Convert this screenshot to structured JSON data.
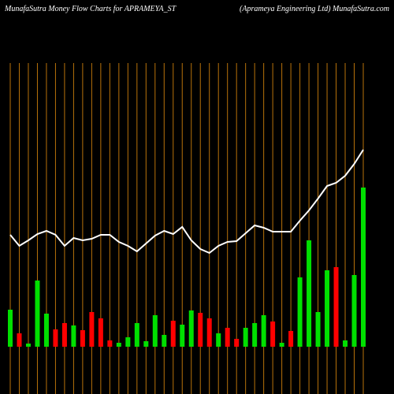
{
  "chart_data": {
    "type": "bar",
    "title": "MunafaSutra  Money Flow  Charts for APRAMEYA_ST",
    "subtitle": "(Aprameya  Engineering Ltd) MunafaSutra.com",
    "line": {
      "color": "#ffffff",
      "values": [
        142,
        128,
        135,
        143,
        147,
        142,
        128,
        138,
        135,
        137,
        142,
        142,
        133,
        128,
        121,
        131,
        141,
        147,
        143,
        152,
        135,
        124,
        119,
        128,
        133,
        134,
        144,
        154,
        151,
        146,
        146,
        146,
        160,
        173,
        188,
        204,
        208,
        217,
        232,
        250
      ]
    },
    "values": [
      47,
      17,
      4,
      84,
      42,
      22,
      30,
      27,
      21,
      44,
      36,
      8,
      5,
      12,
      30,
      7,
      40,
      15,
      33,
      28,
      46,
      43,
      36,
      17,
      24,
      10,
      24,
      30,
      40,
      32,
      5,
      20,
      88,
      135,
      44,
      97,
      101,
      8,
      91,
      202
    ],
    "colors": [
      "#00e000",
      "#ff0000",
      "#00e000",
      "#00e000",
      "#00e000",
      "#ff0000",
      "#ff0000",
      "#00e000",
      "#ff0000",
      "#ff0000",
      "#ff0000",
      "#ff0000",
      "#00e000",
      "#00e000",
      "#00e000",
      "#00e000",
      "#00e000",
      "#00e000",
      "#ff0000",
      "#00e000",
      "#00e000",
      "#ff0000",
      "#ff0000",
      "#00e000",
      "#ff0000",
      "#ff0000",
      "#00e000",
      "#00e000",
      "#00e000",
      "#ff0000",
      "#00e000",
      "#ff0000",
      "#00e000",
      "#00e000",
      "#00e000",
      "#00e000",
      "#ff0000",
      "#00e000",
      "#00e000",
      "#00e000"
    ]
  }
}
